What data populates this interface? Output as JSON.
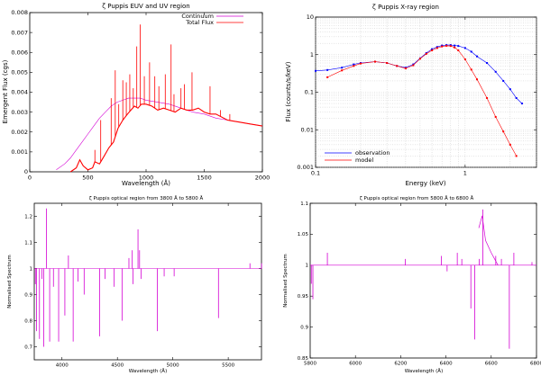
{
  "chart_data": [
    {
      "id": "euv",
      "type": "line",
      "title": "ζ Puppis EUV and UV region",
      "xlabel": "Wavelength (Å)",
      "ylabel": "Emergent Flux (cgs)",
      "xlim": [
        0,
        2000
      ],
      "ylim": [
        0,
        0.008
      ],
      "xticks": [
        0,
        500,
        1000,
        1500,
        2000
      ],
      "xtick_labels": [
        "0",
        "500",
        "1000",
        "1500",
        "2000"
      ],
      "yticks": [
        0,
        0.001,
        0.002,
        0.003,
        0.004,
        0.005,
        0.006,
        0.007,
        0.008
      ],
      "ytick_labels": [
        "0",
        "0.001",
        "0.002",
        "0.003",
        "0.004",
        "0.005",
        "0.006",
        "0.007",
        "0.008"
      ],
      "legend": "top-right",
      "series": [
        {
          "name": "Continuum",
          "color": "#d400d4",
          "x": [
            228,
            300,
            350,
            400,
            450,
            500,
            550,
            600,
            650,
            700,
            750,
            800,
            850,
            900,
            950,
            1000,
            1100,
            1200,
            1300,
            1400,
            1500,
            1600,
            1700,
            1800,
            1900,
            2000
          ],
          "values": [
            0.0001,
            0.0004,
            0.0007,
            0.0011,
            0.0015,
            0.0019,
            0.0023,
            0.0027,
            0.003,
            0.0033,
            0.0035,
            0.0036,
            0.0037,
            0.0037,
            0.0037,
            0.0036,
            0.0035,
            0.0034,
            0.0032,
            0.003,
            0.0029,
            0.0027,
            0.0026,
            0.0025,
            0.0024,
            0.0023
          ]
        },
        {
          "name": "Total Flux",
          "color": "#ff0000",
          "x": [
            350,
            400,
            430,
            460,
            500,
            540,
            560,
            600,
            640,
            680,
            720,
            760,
            800,
            840,
            870,
            900,
            930,
            960,
            1000,
            1050,
            1100,
            1150,
            1200,
            1250,
            1300,
            1350,
            1400,
            1450,
            1500,
            1550,
            1600,
            1700,
            1800,
            1900,
            2000
          ],
          "values": [
            0.0,
            0.0002,
            0.0006,
            0.0003,
            0.0001,
            0.0002,
            0.0005,
            0.0004,
            0.0008,
            0.0012,
            0.0015,
            0.0022,
            0.0026,
            0.0029,
            0.0031,
            0.0033,
            0.0032,
            0.0034,
            0.0034,
            0.0033,
            0.0031,
            0.0032,
            0.0031,
            0.003,
            0.0032,
            0.0031,
            0.0031,
            0.0032,
            0.003,
            0.0029,
            0.0029,
            0.0026,
            0.0025,
            0.0024,
            0.0023
          ]
        }
      ],
      "spikes": [
        {
          "series": "Total Flux",
          "x": [
            560,
            610,
            700,
            735,
            765,
            800,
            830,
            860,
            890,
            920,
            950,
            985,
            1030,
            1075,
            1110,
            1165,
            1215,
            1240,
            1300,
            1330,
            1395,
            1550,
            1640,
            1720
          ],
          "values": [
            0.0011,
            0.0026,
            0.0037,
            0.0051,
            0.0034,
            0.0046,
            0.0045,
            0.0049,
            0.0042,
            0.0063,
            0.0074,
            0.0048,
            0.0055,
            0.0048,
            0.0043,
            0.0049,
            0.0064,
            0.0039,
            0.0042,
            0.0044,
            0.005,
            0.0043,
            0.0031,
            0.0029
          ]
        }
      ]
    },
    {
      "id": "xray",
      "type": "line",
      "title": "ζ Puppis X-ray region",
      "xlabel": "Energy (keV)",
      "ylabel": "Flux (counts/s/keV)",
      "xscale": "log",
      "yscale": "log",
      "xlim": [
        0.1,
        3
      ],
      "ylim": [
        0.001,
        10
      ],
      "xticks": [
        0.1,
        1
      ],
      "xtick_labels": [
        "0.1",
        "1"
      ],
      "yticks": [
        0.001,
        0.01,
        0.1,
        1,
        10
      ],
      "ytick_labels": [
        "0.001",
        "0.01",
        "0.1",
        "1",
        "10"
      ],
      "legend": "bottom-left",
      "series": [
        {
          "name": "observation",
          "color": "#0000ff",
          "x": [
            0.1,
            0.12,
            0.15,
            0.18,
            0.2,
            0.25,
            0.3,
            0.35,
            0.4,
            0.45,
            0.5,
            0.55,
            0.6,
            0.65,
            0.7,
            0.75,
            0.8,
            0.85,
            0.9,
            1.0,
            1.1,
            1.2,
            1.4,
            1.6,
            1.8,
            2.0,
            2.2,
            2.4
          ],
          "values": [
            0.37,
            0.39,
            0.45,
            0.55,
            0.6,
            0.65,
            0.6,
            0.5,
            0.45,
            0.55,
            0.8,
            1.1,
            1.4,
            1.6,
            1.75,
            1.8,
            1.8,
            1.75,
            1.7,
            1.5,
            1.2,
            0.9,
            0.6,
            0.35,
            0.2,
            0.12,
            0.07,
            0.05
          ]
        },
        {
          "name": "model",
          "color": "#ff0000",
          "x": [
            0.12,
            0.15,
            0.18,
            0.2,
            0.25,
            0.3,
            0.35,
            0.4,
            0.45,
            0.5,
            0.55,
            0.6,
            0.65,
            0.7,
            0.75,
            0.8,
            0.85,
            0.9,
            1.0,
            1.1,
            1.2,
            1.4,
            1.6,
            1.8,
            2.0,
            2.2
          ],
          "values": [
            0.25,
            0.38,
            0.5,
            0.58,
            0.65,
            0.6,
            0.5,
            0.43,
            0.52,
            0.78,
            1.05,
            1.3,
            1.5,
            1.65,
            1.72,
            1.7,
            1.55,
            1.3,
            0.75,
            0.4,
            0.22,
            0.07,
            0.022,
            0.009,
            0.004,
            0.002
          ]
        }
      ]
    },
    {
      "id": "optical1",
      "type": "line",
      "title": "ζ Puppis optical region from 3800 Å to 5800 Å",
      "xlabel": "Wavelength (Å)",
      "ylabel": "Normalised Spectrum",
      "xlim": [
        3750,
        5800
      ],
      "ylim": [
        0.65,
        1.25
      ],
      "xticks": [
        4000,
        4500,
        5000,
        5500
      ],
      "xtick_labels": [
        "4000",
        "4500",
        "5000",
        "5500"
      ],
      "yticks": [
        0.7,
        0.8,
        0.9,
        1.0,
        1.1,
        1.2
      ],
      "ytick_labels": [
        "0.7",
        "0.8",
        "0.9",
        "1",
        "1.1",
        "1.2"
      ],
      "continuum": 1.0,
      "series": [
        {
          "name": "spectrum",
          "color": "#d400d4",
          "lines": [
            [
              3760,
              0.94
            ],
            [
              3770,
              0.76
            ],
            [
              3797,
              0.73
            ],
            [
              3820,
              0.96
            ],
            [
              3835,
              0.7
            ],
            [
              3860,
              1.23
            ],
            [
              3889,
              0.72
            ],
            [
              3923,
              0.93
            ],
            [
              3970,
              0.72
            ],
            [
              4026,
              0.82
            ],
            [
              4058,
              1.05
            ],
            [
              4101,
              0.72
            ],
            [
              4144,
              0.95
            ],
            [
              4200,
              0.9
            ],
            [
              4340,
              0.74
            ],
            [
              4388,
              0.96
            ],
            [
              4471,
              0.93
            ],
            [
              4542,
              0.8
            ],
            [
              4604,
              1.04
            ],
            [
              4634,
              1.07
            ],
            [
              4640,
              0.94
            ],
            [
              4686,
              1.15
            ],
            [
              4700,
              1.07
            ],
            [
              4713,
              0.96
            ],
            [
              4861,
              0.76
            ],
            [
              4922,
              0.97
            ],
            [
              5012,
              0.97
            ],
            [
              5412,
              0.81
            ],
            [
              5696,
              1.02
            ],
            [
              5801,
              1.02
            ]
          ]
        }
      ]
    },
    {
      "id": "optical2",
      "type": "line",
      "title": "ζ Puppis optical region from 5800 Å to 6800 Å",
      "xlabel": "Wavelength (Å)",
      "ylabel": "Normalised Spectrum",
      "xlim": [
        5800,
        6800
      ],
      "ylim": [
        0.85,
        1.1
      ],
      "xticks": [
        5800,
        6000,
        6200,
        6400,
        6600,
        6800
      ],
      "xtick_labels": [
        "5800",
        "6000",
        "6200",
        "6400",
        "6600",
        "6800"
      ],
      "yticks": [
        0.85,
        0.9,
        0.95,
        1.0,
        1.05,
        1.1
      ],
      "ytick_labels": [
        "0.85",
        "0.9",
        "0.95",
        "1",
        "1.05",
        "1.1"
      ],
      "continuum": 1.0,
      "series": [
        {
          "name": "spectrum",
          "color": "#d400d4",
          "lines": [
            [
              5805,
              0.97
            ],
            [
              5812,
              0.945
            ],
            [
              5876,
              1.02
            ],
            [
              6220,
              1.01
            ],
            [
              6380,
              1.015
            ],
            [
              6405,
              0.99
            ],
            [
              6450,
              1.02
            ],
            [
              6470,
              1.01
            ],
            [
              6510,
              0.93
            ],
            [
              6527,
              0.88
            ],
            [
              6547,
              1.01
            ],
            [
              6563,
              1.09
            ],
            [
              6620,
              1.015
            ],
            [
              6645,
              1.01
            ],
            [
              6680,
              0.865
            ],
            [
              6700,
              1.02
            ],
            [
              6780,
              1.005
            ]
          ],
          "emission_hump": {
            "x": [
              6545,
              6560,
              6575,
              6600,
              6630
            ],
            "values": [
              1.06,
              1.08,
              1.04,
              1.02,
              1.0
            ]
          }
        }
      ]
    }
  ],
  "legend": {
    "euv": [
      {
        "label": "Continuum"
      },
      {
        "label": "Total Flux"
      }
    ],
    "xray": [
      {
        "label": "observation"
      },
      {
        "label": "model"
      }
    ]
  }
}
